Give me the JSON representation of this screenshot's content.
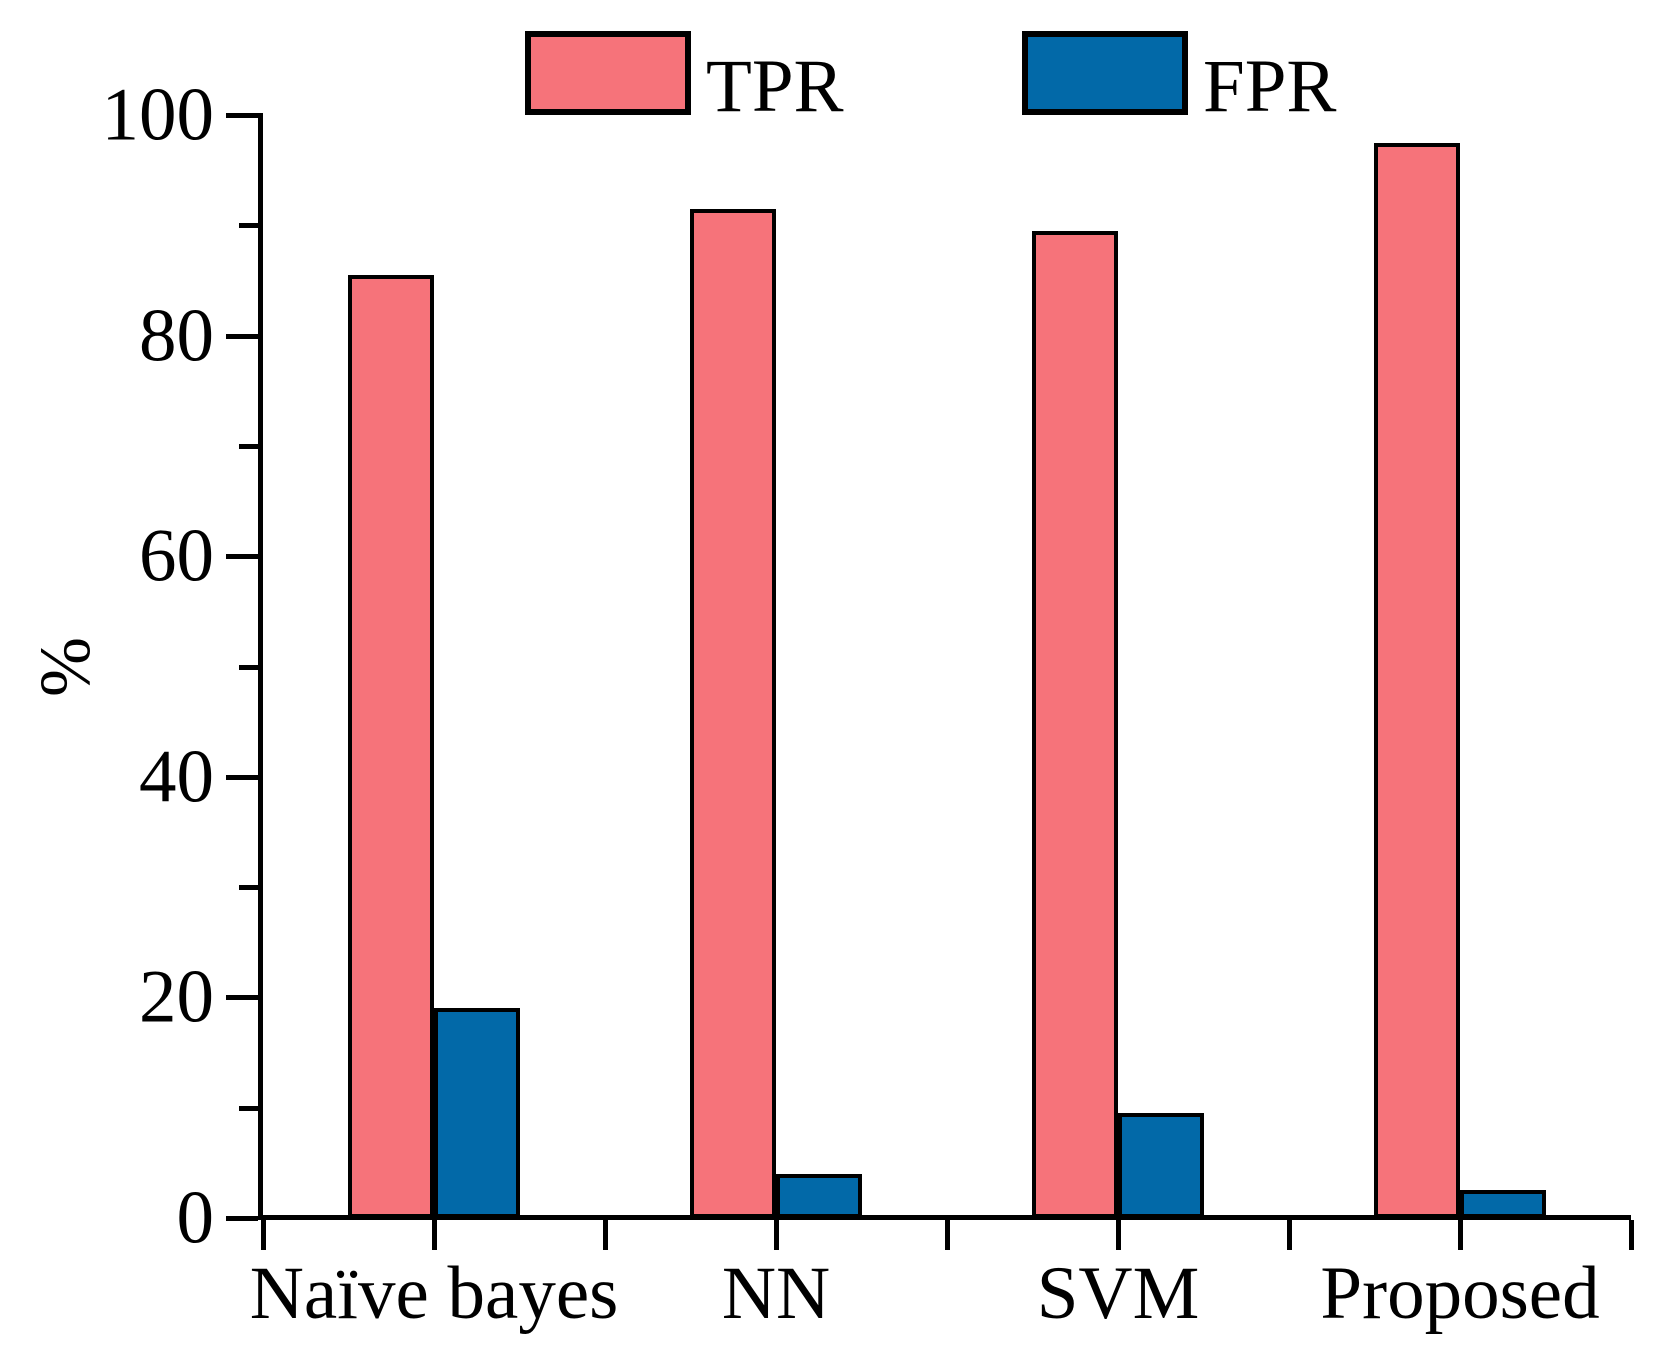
{
  "chart_data": {
    "type": "bar",
    "title": "",
    "categories": [
      "Naïve bayes",
      "NN",
      "SVM",
      "Proposed"
    ],
    "series": [
      {
        "name": "TPR",
        "color": "#F6737A",
        "values": [
          85.5,
          91.5,
          89.5,
          97.5
        ]
      },
      {
        "name": "FPR",
        "color": "#0269A8",
        "values": [
          19,
          4,
          9.5,
          2.5
        ]
      }
    ],
    "xlabel": "",
    "ylabel": "%",
    "ylim": [
      0,
      100
    ],
    "y_major_step": 20,
    "y_minor_step": 10,
    "y_tick_labels": [
      "0",
      "20",
      "40",
      "60",
      "80",
      "100"
    ],
    "legend_position": "top",
    "grid": false,
    "bar_border_color": "#000000",
    "axis_color": "#000000"
  },
  "legend": {
    "items": [
      {
        "label": "TPR"
      },
      {
        "label": "FPR"
      }
    ]
  }
}
